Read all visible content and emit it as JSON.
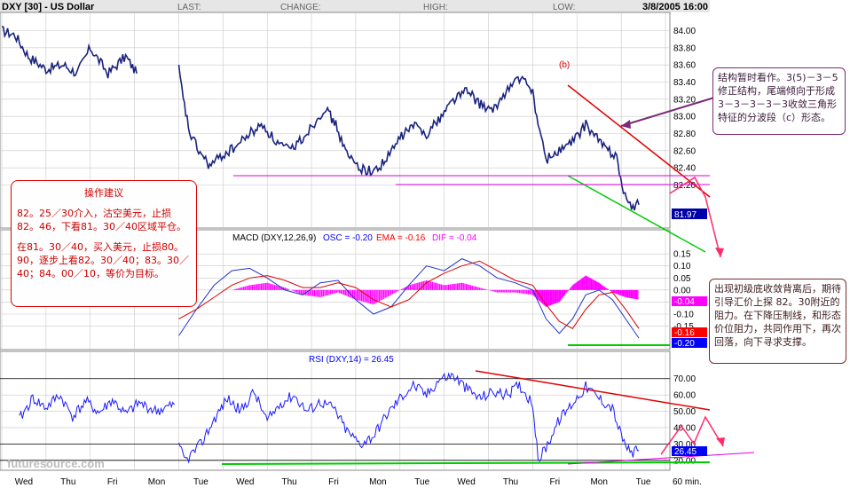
{
  "header": {
    "symbol": "DXY [30] - US Dollar",
    "last_label": "LAST:",
    "change_label": "CHANGE:",
    "high_label": "HIGH:",
    "low_label": "LOW:",
    "datetime": "3/8/2005 16:00"
  },
  "annotations": {
    "b_label": "(b)",
    "note1": "结构暂时看作。3(5)－3－5修正结构，尾端倾向于形成3－3－3－3－3收敛三角形特征的分波段（c）形态。",
    "note2": "出现初级底收敛背离后，期待引导汇价上探 82。30附近的阻力。在下降压制线，和形态价位阻力，共同作用下，再次回落，向下寻求支撑。"
  },
  "advice": {
    "title": "操作建议",
    "p1": "82。25／30介入，沽空美元，止损82。46，下看81。30／40区域平仓。",
    "p2": "在81。30／40，买入美元，止损80。90，逐步上看82。30／40；83。30／40；84。00／10，等价为目标。"
  },
  "watermark": "futuresource.com",
  "footer_interval": "60 min.",
  "colors": {
    "price": "#1a237e",
    "macd": "#2233cc",
    "signal": "#dd0000",
    "hist": "#ff00ff",
    "rsi": "#1a1aff",
    "red_line": "#e00000",
    "green_line": "#00cc00",
    "magenta_line": "#dd00dd",
    "grid": "#c8c8c8",
    "label_red": "#ff0000",
    "label_blue": "#0000ff"
  },
  "chart_data": [
    {
      "type": "line",
      "title": "DXY [30] - US Dollar",
      "x_day_labels": [
        "Wed",
        "Thu",
        "Fri",
        "Mon",
        "Tue",
        "Wed",
        "Thu",
        "Fri",
        "Mon",
        "Tue",
        "Wed",
        "Thu",
        "Fri",
        "Mon",
        "Tue"
      ],
      "y_ticks": [
        "84.00",
        "83.80",
        "83.60",
        "83.40",
        "83.20",
        "83.00",
        "82.80",
        "82.60",
        "82.40",
        "82.20"
      ],
      "ylim": [
        81.75,
        84.15
      ],
      "last_value": "81.97",
      "series": [
        {
          "name": "DXY",
          "segments": [
            {
              "x": [
                0,
                0.3,
                0.6,
                1.0,
                1.4,
                1.7,
                2.0,
                2.4,
                2.8,
                3.05
              ],
              "y": [
                84.0,
                83.95,
                83.7,
                83.55,
                83.6,
                83.5,
                83.8,
                83.5,
                83.7,
                83.5
              ]
            },
            {
              "x": [
                4.0,
                4.1,
                4.25,
                4.45,
                4.7,
                5.0,
                5.3,
                5.6,
                5.9,
                6.2,
                6.5,
                6.8,
                7.1,
                7.3,
                7.55,
                7.8,
                8.1,
                8.4,
                8.7,
                9.0,
                9.3,
                9.6,
                9.9,
                10.2,
                10.5,
                10.8,
                11.1,
                11.4,
                11.7,
                12.0,
                12.12,
                12.3,
                12.6,
                12.9,
                13.2,
                13.45,
                13.7,
                13.9,
                14.05,
                14.2,
                14.4
              ],
              "y": [
                83.55,
                83.2,
                82.8,
                82.6,
                82.42,
                82.55,
                82.65,
                82.8,
                82.9,
                82.7,
                82.6,
                82.75,
                82.95,
                83.1,
                82.9,
                82.55,
                82.4,
                82.35,
                82.5,
                82.75,
                82.9,
                82.8,
                82.98,
                83.2,
                83.3,
                83.15,
                83.05,
                83.3,
                83.45,
                83.3,
                82.9,
                82.5,
                82.6,
                82.7,
                82.9,
                82.75,
                82.6,
                82.55,
                82.1,
                81.95,
                81.97
              ]
            }
          ]
        }
      ],
      "horizontal_lines": [
        82.42,
        82.36
      ]
    },
    {
      "type": "line",
      "title": "MACD (DXY,12,26,9)",
      "label_osc": "OSC = -0.20",
      "label_ema": "EMA = -0.16",
      "label_dif": "DIF = -0.04",
      "y_ticks": [
        "0.15",
        "0.10",
        "0.05",
        "0.00",
        "-0.05",
        "-0.10",
        "-0.15"
      ],
      "ylim": [
        -0.24,
        0.18
      ],
      "value_labels": [
        "-0.04",
        "-0.16",
        "-0.20"
      ],
      "x": [
        4.0,
        4.4,
        4.8,
        5.2,
        5.6,
        6.0,
        6.4,
        6.8,
        7.2,
        7.6,
        8.0,
        8.4,
        8.8,
        9.2,
        9.6,
        10.0,
        10.4,
        10.8,
        11.2,
        11.6,
        12.0,
        12.3,
        12.6,
        12.9,
        13.2,
        13.5,
        13.8,
        14.1,
        14.4
      ],
      "series": [
        {
          "name": "OSC",
          "values": [
            -0.19,
            -0.08,
            0.02,
            0.08,
            0.09,
            0.05,
            0.0,
            -0.02,
            0.03,
            0.04,
            -0.04,
            -0.1,
            -0.07,
            0.02,
            0.1,
            0.08,
            0.13,
            0.1,
            0.05,
            0.03,
            0.0,
            -0.12,
            -0.18,
            -0.12,
            -0.02,
            0.0,
            -0.04,
            -0.12,
            -0.2
          ]
        },
        {
          "name": "EMA",
          "values": [
            -0.12,
            -0.08,
            -0.03,
            0.02,
            0.05,
            0.06,
            0.04,
            0.01,
            0.01,
            0.03,
            0.01,
            -0.04,
            -0.07,
            -0.04,
            0.03,
            0.07,
            0.1,
            0.12,
            0.08,
            0.04,
            0.02,
            -0.06,
            -0.13,
            -0.16,
            -0.08,
            -0.02,
            -0.01,
            -0.08,
            -0.16
          ]
        },
        {
          "name": "DIF",
          "values": [
            0.0,
            0.0,
            0.0,
            0.0,
            0.02,
            0.03,
            0.01,
            -0.02,
            -0.03,
            -0.01,
            -0.04,
            -0.06,
            -0.02,
            0.02,
            0.04,
            0.02,
            0.03,
            0.01,
            -0.01,
            -0.01,
            -0.02,
            -0.07,
            -0.05,
            0.02,
            0.06,
            0.03,
            -0.01,
            -0.03,
            -0.04
          ]
        }
      ]
    },
    {
      "type": "line",
      "title": "RSI (DXY,14) = 26.45",
      "y_ticks": [
        "70.00",
        "60.00",
        "50.00",
        "40.00",
        "30.00",
        "20.00"
      ],
      "ylim": [
        15,
        78
      ],
      "last_value": "26.45",
      "series": [
        {
          "name": "RSI",
          "segments": [
            {
              "x": [
                0.4,
                0.7,
                1.0,
                1.3,
                1.6,
                1.9,
                2.2,
                2.5,
                2.8,
                3.1,
                3.5,
                3.9
              ],
              "y": [
                45,
                58,
                52,
                60,
                47,
                56,
                49,
                57,
                48,
                55,
                50,
                54
              ]
            },
            {
              "x": [
                4.0,
                4.15,
                4.3,
                4.5,
                4.8,
                5.1,
                5.4,
                5.7,
                6.0,
                6.3,
                6.6,
                6.9,
                7.2,
                7.5,
                7.8,
                8.1,
                8.4,
                8.7,
                9.0,
                9.3,
                9.6,
                9.9,
                10.2,
                10.5,
                10.8,
                11.1,
                11.4,
                11.7,
                12.0,
                12.12,
                12.3,
                12.6,
                12.9,
                13.2,
                13.5,
                13.8,
                14.0,
                14.2,
                14.4
              ],
              "y": [
                28,
                20,
                24,
                30,
                45,
                58,
                50,
                62,
                44,
                55,
                60,
                50,
                56,
                52,
                38,
                30,
                35,
                48,
                58,
                66,
                60,
                70,
                72,
                64,
                58,
                62,
                60,
                66,
                55,
                20,
                28,
                45,
                55,
                65,
                58,
                52,
                35,
                24,
                26
              ]
            }
          ]
        }
      ]
    }
  ]
}
